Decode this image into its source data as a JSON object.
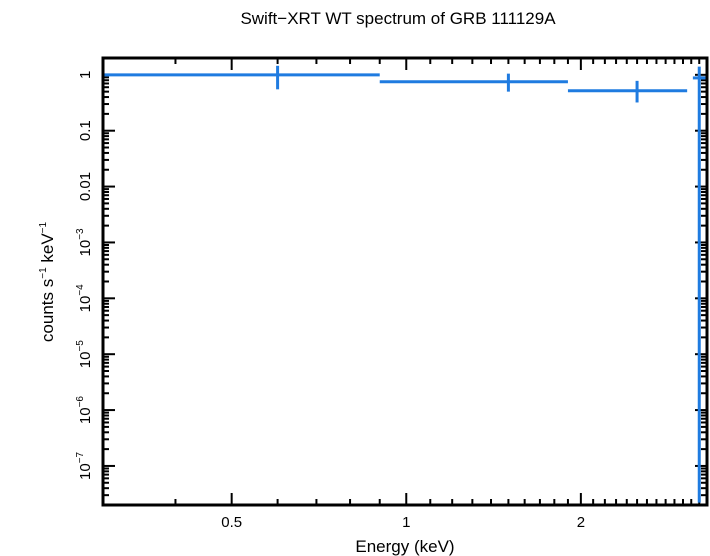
{
  "chart_data": {
    "type": "scatter",
    "title": "Swift−XRT WT spectrum of GRB 111129A",
    "xlabel": "Energy (keV)",
    "ylabel_parts": [
      "counts s",
      "−1",
      " keV",
      "−1"
    ],
    "xscale": "log",
    "yscale": "log",
    "xlim": [
      0.3,
      3.3
    ],
    "ylim": [
      2e-08,
      2
    ],
    "x_ticks": [
      {
        "value": 0.5,
        "label": "0.5"
      },
      {
        "value": 1,
        "label": "1"
      },
      {
        "value": 2,
        "label": "2"
      }
    ],
    "y_ticks": [
      {
        "value": 1,
        "base": "1",
        "exp": ""
      },
      {
        "value": 0.1,
        "base": "0.1",
        "exp": ""
      },
      {
        "value": 0.01,
        "base": "0.01",
        "exp": ""
      },
      {
        "value": 0.001,
        "base": "10",
        "exp": "−3"
      },
      {
        "value": 0.0001,
        "base": "10",
        "exp": "−4"
      },
      {
        "value": 1e-05,
        "base": "10",
        "exp": "−5"
      },
      {
        "value": 1e-06,
        "base": "10",
        "exp": "−6"
      },
      {
        "value": 1e-07,
        "base": "10",
        "exp": "−7"
      }
    ],
    "color": "#1f7be0",
    "points": [
      {
        "x": 0.6,
        "xlo": 0.3,
        "xhi": 0.9,
        "y": 1.0,
        "ylo": 0.55,
        "yhi": 1.45
      },
      {
        "x": 1.5,
        "xlo": 0.9,
        "xhi": 1.9,
        "y": 0.75,
        "ylo": 0.5,
        "yhi": 1.05
      },
      {
        "x": 2.5,
        "xlo": 1.9,
        "xhi": 3.05,
        "y": 0.52,
        "ylo": 0.32,
        "yhi": 0.78
      },
      {
        "x": 3.2,
        "xlo": 3.12,
        "xhi": 3.3,
        "y": 0.88,
        "ylo": 2.2e-08,
        "yhi": 1.4
      }
    ]
  }
}
